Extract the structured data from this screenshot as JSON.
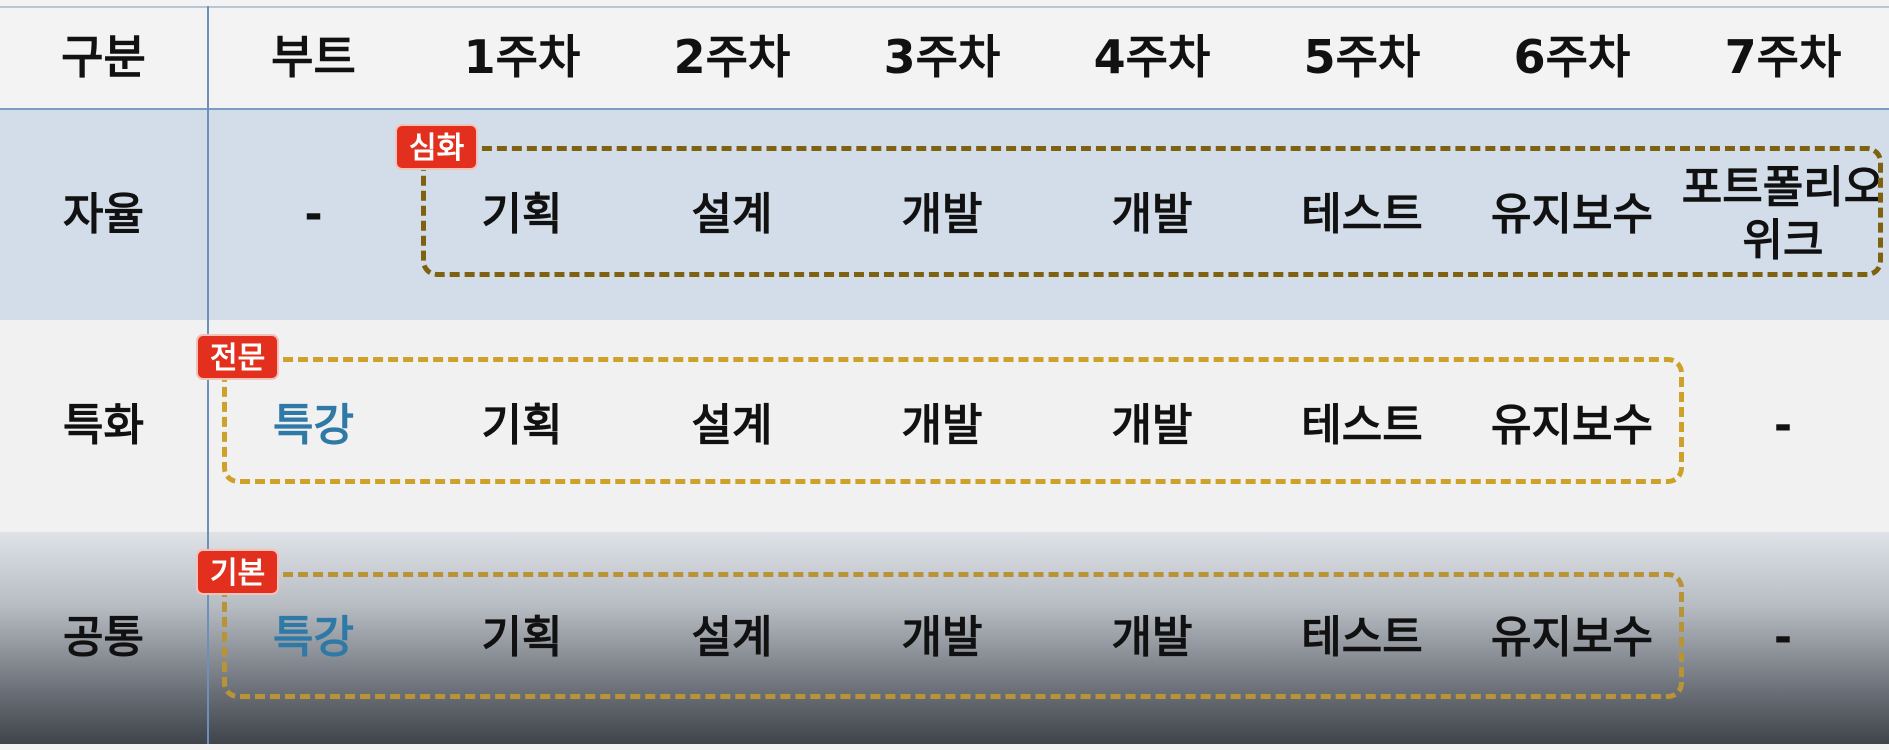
{
  "header": [
    "구분",
    "부트",
    "1주차",
    "2주차",
    "3주차",
    "4주차",
    "5주차",
    "6주차",
    "7주차"
  ],
  "rows": {
    "jayul": {
      "cells": [
        "자율",
        "-",
        "기획",
        "설계",
        "개발",
        "개발",
        "테스트",
        "유지보수",
        "포트폴리오\n위크"
      ],
      "badge": "심화"
    },
    "teukhwa": {
      "cells": [
        "특화",
        "특강",
        "기획",
        "설계",
        "개발",
        "개발",
        "테스트",
        "유지보수",
        "-"
      ],
      "badge": "전문"
    },
    "gongtong": {
      "cells": [
        "공통",
        "특강",
        "기획",
        "설계",
        "개발",
        "개발",
        "테스트",
        "유지보수",
        "-"
      ],
      "badge": "기본"
    }
  },
  "colors": {
    "accent_text": "#2f79a6",
    "badge_bg": "#e3301e",
    "row_jayul_bg": "#d3dde9",
    "dash_jayul": "#7e6210",
    "dash_teukhwa": "#cda22a",
    "dash_gongtong": "#b99436"
  }
}
